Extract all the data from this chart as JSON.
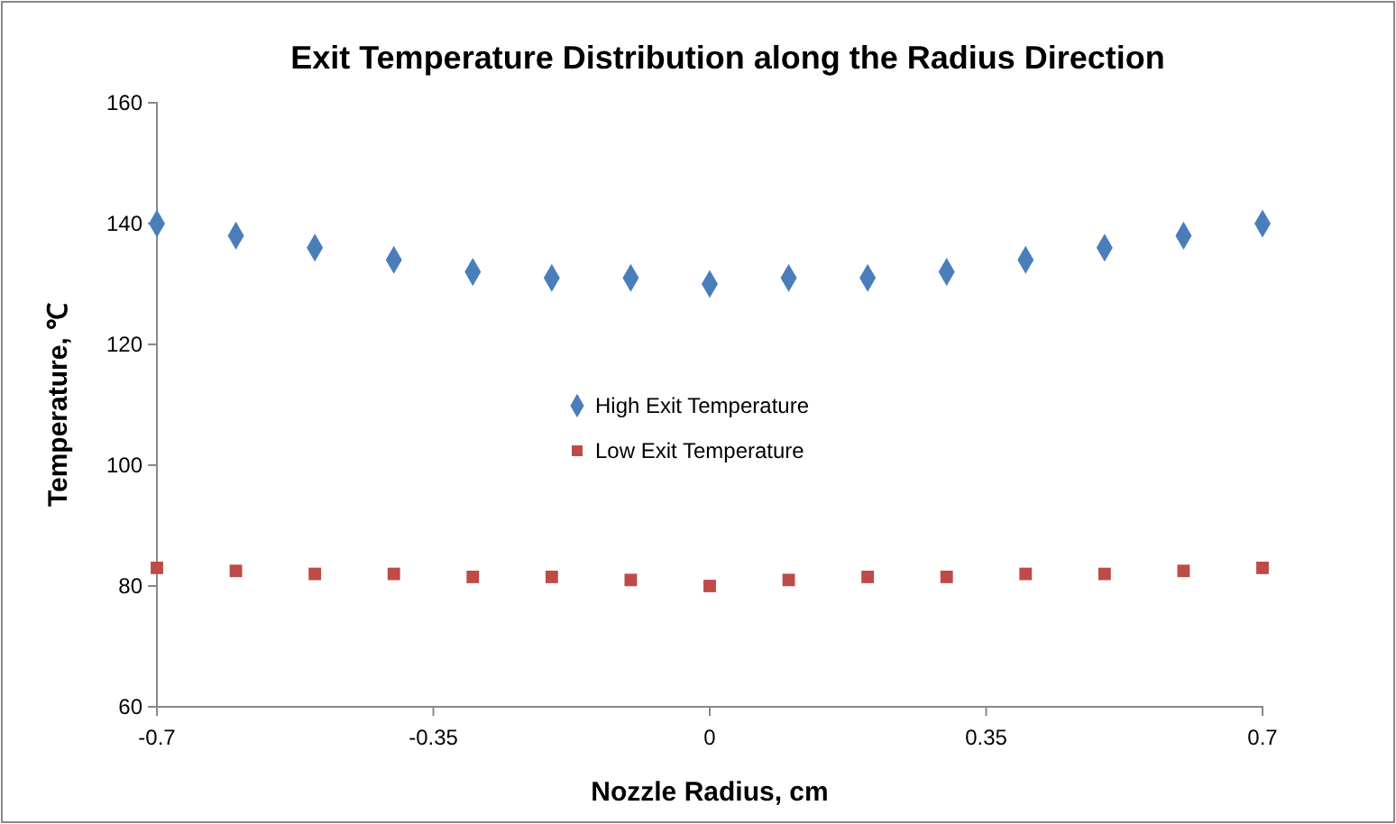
{
  "chart_data": {
    "type": "scatter",
    "title": "Exit Temperature Distribution along the Radius Direction",
    "xlabel": "Nozzle Radius, cm",
    "ylabel": "Temperature, ℃",
    "x": [
      -0.7,
      -0.6,
      -0.5,
      -0.4,
      -0.3,
      -0.2,
      -0.1,
      0,
      0.1,
      0.2,
      0.3,
      0.4,
      0.5,
      0.6,
      0.7
    ],
    "series": [
      {
        "name": "High Exit Temperature",
        "color": "#4a7ebb",
        "marker": "diamond",
        "values": [
          140,
          138,
          136,
          134,
          132,
          131,
          131,
          130,
          131,
          131,
          132,
          134,
          136,
          138,
          140
        ]
      },
      {
        "name": "Low Exit Temperature",
        "color": "#be4b48",
        "marker": "square",
        "values": [
          83,
          82.5,
          82,
          82,
          81.5,
          81.5,
          81,
          80,
          81,
          81.5,
          81.5,
          82,
          82,
          82.5,
          83
        ]
      }
    ],
    "xlim": [
      -0.7,
      0.7
    ],
    "xticks": [
      -0.7,
      -0.35,
      0,
      0.35,
      0.7
    ],
    "ylim": [
      60,
      160
    ],
    "yticks": [
      60,
      80,
      100,
      120,
      140,
      160
    ],
    "grid": false,
    "legend": "center"
  }
}
